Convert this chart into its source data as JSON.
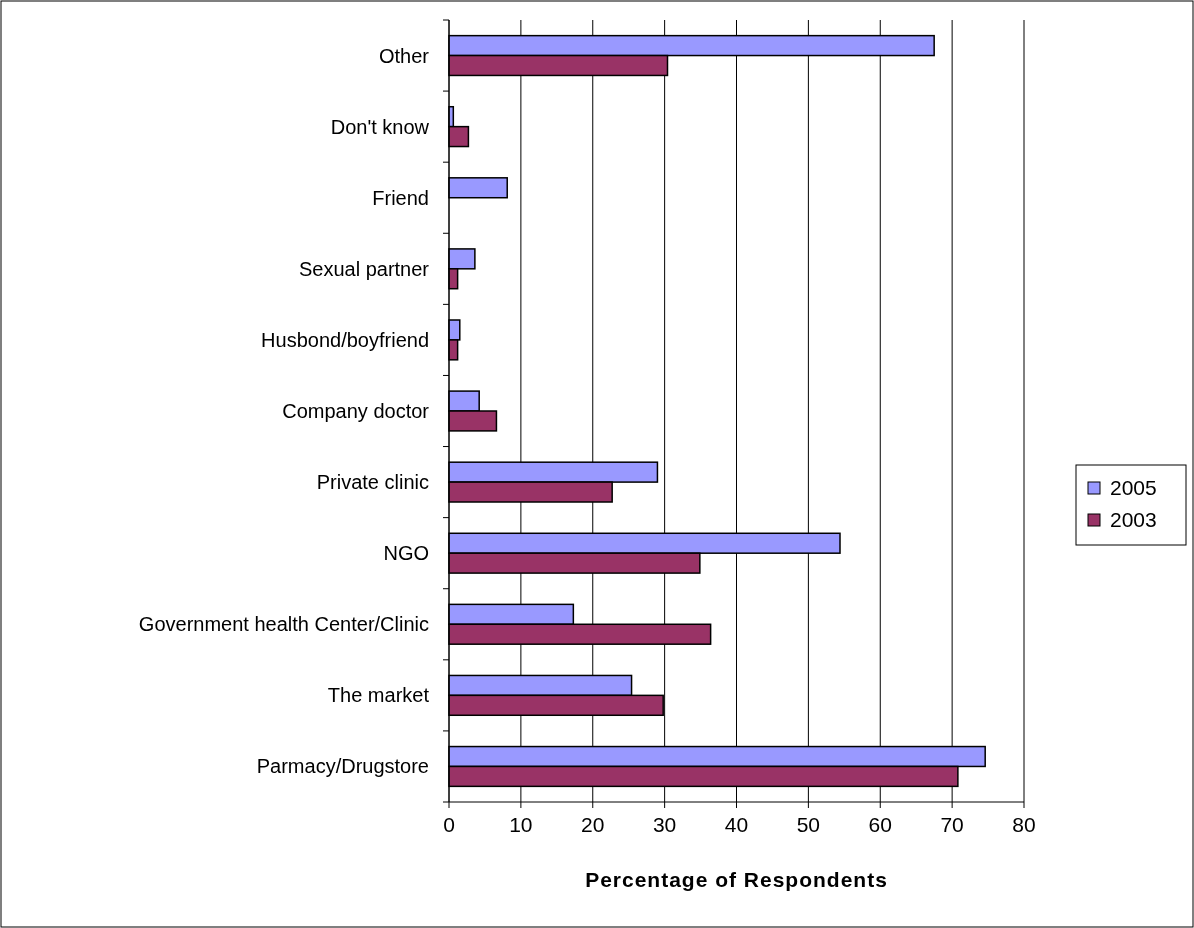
{
  "chart_data": {
    "type": "bar",
    "orientation": "horizontal",
    "xlabel": "Percentage of Respondents",
    "categories": [
      "Other",
      "Don't know",
      "Friend",
      "Sexual partner",
      "Husbond/boyfriend",
      "Company doctor",
      "Private clinic",
      "NGO",
      "Government health Center/Clinic",
      "The market",
      "Parmacy/Drugstore"
    ],
    "series": [
      {
        "name": "2005",
        "color": "#9999ff",
        "values": [
          67.5,
          0.6,
          8.1,
          3.6,
          1.5,
          4.2,
          29.0,
          54.4,
          17.3,
          25.4,
          74.6
        ]
      },
      {
        "name": "2003",
        "color": "#993366",
        "values": [
          30.4,
          2.7,
          null,
          1.2,
          1.2,
          6.6,
          22.7,
          34.9,
          36.4,
          29.8,
          70.8
        ]
      }
    ],
    "xlim": [
      0,
      80
    ],
    "xticks": [
      0,
      10,
      20,
      30,
      40,
      50,
      60,
      70,
      80
    ],
    "grid": "x",
    "legend": "right"
  }
}
